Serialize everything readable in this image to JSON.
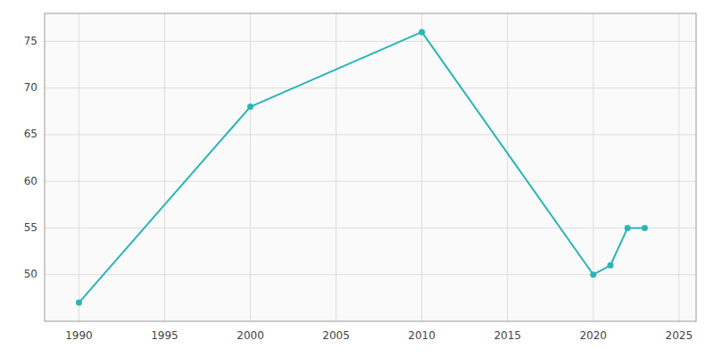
{
  "chart_data": {
    "type": "line",
    "x": [
      1990,
      2000,
      2010,
      2020,
      2021,
      2022,
      2023
    ],
    "values": [
      47,
      68,
      76,
      50,
      51,
      55,
      55
    ],
    "color": "#2ab5b5",
    "marker": "circle",
    "xlim": [
      1988,
      2026
    ],
    "ylim": [
      45,
      78
    ],
    "xticks": [
      1990,
      1995,
      2000,
      2005,
      2010,
      2015,
      2020,
      2025
    ],
    "yticks": [
      50,
      55,
      60,
      65,
      70,
      75
    ],
    "grid": true
  }
}
